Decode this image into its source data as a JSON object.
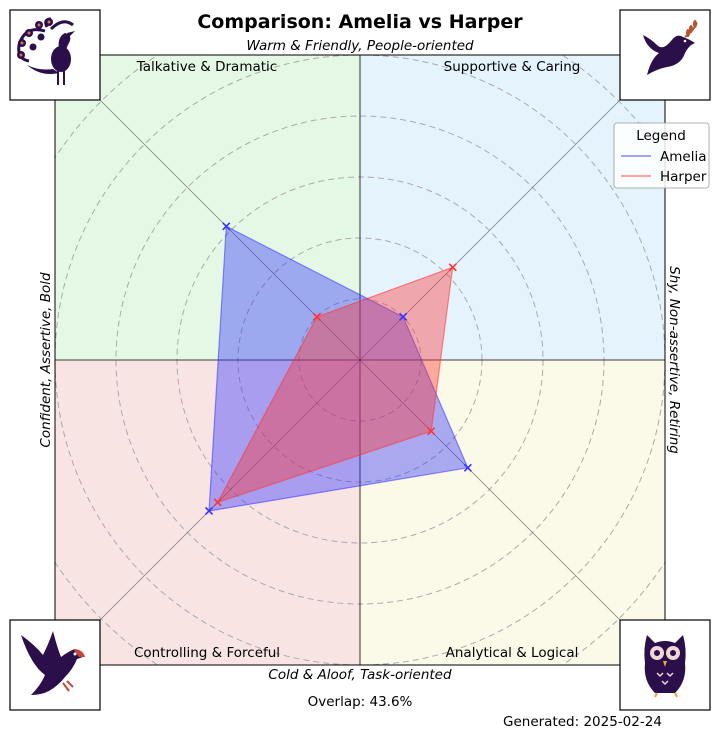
{
  "chart_data": {
    "type": "radar",
    "title": "Comparison: Amelia vs Harper",
    "axes": {
      "top": "Warm & Friendly, People-oriented",
      "bottom": "Cold & Aloof, Task-oriented",
      "left": "Confident, Assertive, Bold",
      "right": "Shy, Non-assertive, Retiring"
    },
    "quadrants": [
      {
        "label": "Talkative & Dramatic",
        "color": "#e5f8e5",
        "position": "top-left",
        "icon": "peacock-icon"
      },
      {
        "label": "Supportive & Caring",
        "color": "#e5f3fd",
        "position": "top-right",
        "icon": "dove-icon"
      },
      {
        "label": "Controlling & Forceful",
        "color": "#f9e4e4",
        "position": "bottom-left",
        "icon": "eagle-icon"
      },
      {
        "label": "Analytical & Logical",
        "color": "#fbf9e7",
        "position": "bottom-right",
        "icon": "owl-icon"
      }
    ],
    "directions": [
      "Supportive & Caring",
      "Analytical & Logical",
      "Controlling & Forceful",
      "Talkative & Dramatic"
    ],
    "series": [
      {
        "name": "Amelia",
        "color": "#3333ff",
        "values": [
          0.2,
          0.5,
          0.7,
          0.62
        ]
      },
      {
        "name": "Harper",
        "color": "#ff3333",
        "values": [
          0.43,
          0.33,
          0.66,
          0.2
        ]
      }
    ],
    "rmax": 1,
    "rings": [
      0.2,
      0.4,
      0.6,
      0.8,
      1.0,
      1.2
    ],
    "legend": {
      "title": "Legend",
      "placement": "upper right"
    },
    "overlap_text": "Overlap: 43.6%",
    "generated_text": "Generated: 2025-02-24"
  }
}
